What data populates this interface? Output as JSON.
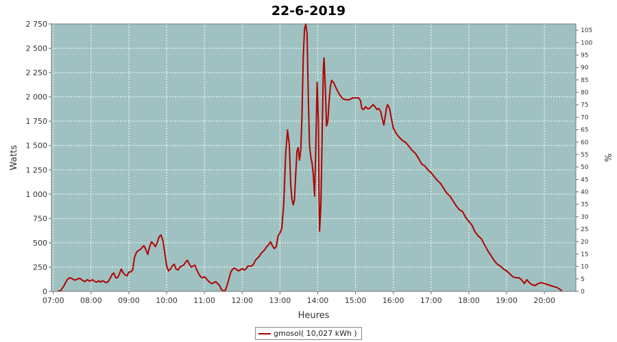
{
  "chart_data": {
    "type": "line",
    "title": "22-6-2019",
    "xlabel": "Heures",
    "ylabel": "Watts",
    "y2label": "%",
    "ylim": [
      0,
      2750
    ],
    "y2lim": [
      0,
      107.5
    ],
    "xlim": [
      "06:57",
      "20:50"
    ],
    "grid": true,
    "legend_position": "bottom-center",
    "x_ticks": [
      "07:00",
      "08:00",
      "09:00",
      "10:00",
      "11:00",
      "12:00",
      "13:00",
      "14:00",
      "15:00",
      "16:00",
      "17:00",
      "18:00",
      "19:00",
      "20:00"
    ],
    "y_ticks": [
      "0",
      "250",
      "500",
      "750",
      "1 000",
      "1 250",
      "1 500",
      "1 750",
      "2 000",
      "2 250",
      "2 500",
      "2 750"
    ],
    "y2_ticks": [
      "0",
      "5",
      "10",
      "15",
      "20",
      "25",
      "30",
      "35",
      "40",
      "45",
      "50",
      "55",
      "60",
      "65",
      "70",
      "75",
      "80",
      "85",
      "90",
      "95",
      "100",
      "105"
    ],
    "series": [
      {
        "name": "gmosol( 10,027 kWh )",
        "color": "#b00000",
        "points": [
          [
            "07:07",
            0
          ],
          [
            "07:12",
            10
          ],
          [
            "07:17",
            60
          ],
          [
            "07:22",
            120
          ],
          [
            "07:26",
            140
          ],
          [
            "07:30",
            130
          ],
          [
            "07:34",
            115
          ],
          [
            "07:38",
            125
          ],
          [
            "07:42",
            135
          ],
          [
            "07:46",
            115
          ],
          [
            "07:50",
            100
          ],
          [
            "07:54",
            120
          ],
          [
            "07:58",
            105
          ],
          [
            "08:02",
            120
          ],
          [
            "08:05",
            105
          ],
          [
            "08:09",
            95
          ],
          [
            "08:12",
            110
          ],
          [
            "08:15",
            95
          ],
          [
            "08:18",
            110
          ],
          [
            "08:21",
            100
          ],
          [
            "08:24",
            90
          ],
          [
            "08:27",
            100
          ],
          [
            "08:30",
            130
          ],
          [
            "08:33",
            170
          ],
          [
            "08:36",
            190
          ],
          [
            "08:39",
            140
          ],
          [
            "08:42",
            140
          ],
          [
            "08:45",
            180
          ],
          [
            "08:48",
            230
          ],
          [
            "08:51",
            190
          ],
          [
            "08:54",
            170
          ],
          [
            "08:57",
            160
          ],
          [
            "09:00",
            200
          ],
          [
            "09:03",
            200
          ],
          [
            "09:06",
            220
          ],
          [
            "09:09",
            350
          ],
          [
            "09:12",
            400
          ],
          [
            "09:15",
            420
          ],
          [
            "09:18",
            430
          ],
          [
            "09:21",
            450
          ],
          [
            "09:24",
            470
          ],
          [
            "09:27",
            430
          ],
          [
            "09:30",
            380
          ],
          [
            "09:33",
            460
          ],
          [
            "09:36",
            510
          ],
          [
            "09:39",
            490
          ],
          [
            "09:42",
            460
          ],
          [
            "09:45",
            500
          ],
          [
            "09:48",
            560
          ],
          [
            "09:51",
            580
          ],
          [
            "09:54",
            520
          ],
          [
            "09:57",
            400
          ],
          [
            "10:00",
            260
          ],
          [
            "10:03",
            210
          ],
          [
            "10:06",
            230
          ],
          [
            "10:09",
            260
          ],
          [
            "10:12",
            280
          ],
          [
            "10:15",
            230
          ],
          [
            "10:18",
            220
          ],
          [
            "10:21",
            250
          ],
          [
            "10:24",
            260
          ],
          [
            "10:27",
            270
          ],
          [
            "10:30",
            300
          ],
          [
            "10:33",
            320
          ],
          [
            "10:36",
            280
          ],
          [
            "10:39",
            250
          ],
          [
            "10:42",
            260
          ],
          [
            "10:45",
            270
          ],
          [
            "10:48",
            220
          ],
          [
            "10:51",
            180
          ],
          [
            "10:54",
            150
          ],
          [
            "10:57",
            140
          ],
          [
            "11:00",
            150
          ],
          [
            "11:03",
            130
          ],
          [
            "11:06",
            110
          ],
          [
            "11:09",
            90
          ],
          [
            "11:12",
            80
          ],
          [
            "11:15",
            90
          ],
          [
            "11:18",
            100
          ],
          [
            "11:21",
            80
          ],
          [
            "11:24",
            60
          ],
          [
            "11:27",
            20
          ],
          [
            "11:30",
            5
          ],
          [
            "11:33",
            10
          ],
          [
            "11:36",
            60
          ],
          [
            "11:39",
            130
          ],
          [
            "11:42",
            200
          ],
          [
            "11:45",
            230
          ],
          [
            "11:48",
            240
          ],
          [
            "11:51",
            225
          ],
          [
            "11:54",
            210
          ],
          [
            "11:57",
            220
          ],
          [
            "12:00",
            235
          ],
          [
            "12:03",
            220
          ],
          [
            "12:06",
            230
          ],
          [
            "12:09",
            260
          ],
          [
            "12:12",
            260
          ],
          [
            "12:15",
            260
          ],
          [
            "12:18",
            280
          ],
          [
            "12:21",
            320
          ],
          [
            "12:24",
            340
          ],
          [
            "12:27",
            360
          ],
          [
            "12:30",
            390
          ],
          [
            "12:33",
            410
          ],
          [
            "12:36",
            430
          ],
          [
            "12:39",
            460
          ],
          [
            "12:42",
            480
          ],
          [
            "12:45",
            510
          ],
          [
            "12:48",
            470
          ],
          [
            "12:51",
            440
          ],
          [
            "12:54",
            460
          ],
          [
            "12:57",
            570
          ],
          [
            "13:00",
            600
          ],
          [
            "13:03",
            650
          ],
          [
            "13:06",
            900
          ],
          [
            "13:09",
            1400
          ],
          [
            "13:12",
            1660
          ],
          [
            "13:15",
            1500
          ],
          [
            "13:17",
            1100
          ],
          [
            "13:19",
            950
          ],
          [
            "13:21",
            890
          ],
          [
            "13:23",
            940
          ],
          [
            "13:25",
            1200
          ],
          [
            "13:27",
            1440
          ],
          [
            "13:29",
            1480
          ],
          [
            "13:31",
            1350
          ],
          [
            "13:33",
            1450
          ],
          [
            "13:35",
            1800
          ],
          [
            "13:37",
            2400
          ],
          [
            "13:39",
            2700
          ],
          [
            "13:41",
            2750
          ],
          [
            "13:43",
            2650
          ],
          [
            "13:45",
            2000
          ],
          [
            "13:47",
            1500
          ],
          [
            "13:49",
            1380
          ],
          [
            "13:51",
            1320
          ],
          [
            "13:53",
            1200
          ],
          [
            "13:55",
            980
          ],
          [
            "13:57",
            1500
          ],
          [
            "13:59",
            2150
          ],
          [
            "14:01",
            1750
          ],
          [
            "14:02",
            1000
          ],
          [
            "14:03",
            620
          ],
          [
            "14:05",
            900
          ],
          [
            "14:07",
            1600
          ],
          [
            "14:09",
            2300
          ],
          [
            "14:10",
            2400
          ],
          [
            "14:12",
            2100
          ],
          [
            "14:14",
            1700
          ],
          [
            "14:16",
            1750
          ],
          [
            "14:18",
            1950
          ],
          [
            "14:20",
            2100
          ],
          [
            "14:22",
            2170
          ],
          [
            "14:25",
            2150
          ],
          [
            "14:30",
            2080
          ],
          [
            "14:35",
            2020
          ],
          [
            "14:40",
            1980
          ],
          [
            "14:45",
            1970
          ],
          [
            "14:50",
            1970
          ],
          [
            "14:55",
            1990
          ],
          [
            "15:00",
            1990
          ],
          [
            "15:05",
            1990
          ],
          [
            "15:08",
            1960
          ],
          [
            "15:10",
            1880
          ],
          [
            "15:13",
            1870
          ],
          [
            "15:16",
            1900
          ],
          [
            "15:19",
            1880
          ],
          [
            "15:22",
            1880
          ],
          [
            "15:25",
            1900
          ],
          [
            "15:28",
            1920
          ],
          [
            "15:31",
            1900
          ],
          [
            "15:34",
            1870
          ],
          [
            "15:37",
            1880
          ],
          [
            "15:40",
            1850
          ],
          [
            "15:43",
            1760
          ],
          [
            "15:45",
            1710
          ],
          [
            "15:47",
            1790
          ],
          [
            "15:49",
            1880
          ],
          [
            "15:51",
            1920
          ],
          [
            "15:54",
            1880
          ],
          [
            "15:57",
            1780
          ],
          [
            "16:00",
            1680
          ],
          [
            "16:05",
            1620
          ],
          [
            "16:10",
            1580
          ],
          [
            "16:15",
            1550
          ],
          [
            "16:20",
            1530
          ],
          [
            "16:25",
            1490
          ],
          [
            "16:30",
            1450
          ],
          [
            "16:35",
            1420
          ],
          [
            "16:40",
            1370
          ],
          [
            "16:45",
            1310
          ],
          [
            "16:50",
            1290
          ],
          [
            "16:55",
            1250
          ],
          [
            "17:00",
            1220
          ],
          [
            "17:05",
            1180
          ],
          [
            "17:10",
            1140
          ],
          [
            "17:15",
            1110
          ],
          [
            "17:20",
            1060
          ],
          [
            "17:25",
            1010
          ],
          [
            "17:30",
            980
          ],
          [
            "17:35",
            930
          ],
          [
            "17:40",
            880
          ],
          [
            "17:45",
            840
          ],
          [
            "17:50",
            820
          ],
          [
            "17:55",
            760
          ],
          [
            "18:00",
            720
          ],
          [
            "18:05",
            680
          ],
          [
            "18:10",
            610
          ],
          [
            "18:15",
            570
          ],
          [
            "18:20",
            540
          ],
          [
            "18:25",
            480
          ],
          [
            "18:30",
            420
          ],
          [
            "18:35",
            370
          ],
          [
            "18:40",
            320
          ],
          [
            "18:45",
            280
          ],
          [
            "18:50",
            260
          ],
          [
            "18:55",
            230
          ],
          [
            "19:00",
            210
          ],
          [
            "19:05",
            180
          ],
          [
            "19:10",
            150
          ],
          [
            "19:15",
            140
          ],
          [
            "19:20",
            140
          ],
          [
            "19:25",
            110
          ],
          [
            "19:28",
            80
          ],
          [
            "19:32",
            120
          ],
          [
            "19:36",
            90
          ],
          [
            "19:40",
            70
          ],
          [
            "19:45",
            60
          ],
          [
            "19:50",
            80
          ],
          [
            "19:55",
            90
          ],
          [
            "20:00",
            80
          ],
          [
            "20:05",
            70
          ],
          [
            "20:10",
            60
          ],
          [
            "20:15",
            50
          ],
          [
            "20:20",
            40
          ],
          [
            "20:25",
            20
          ],
          [
            "20:28",
            5
          ]
        ]
      }
    ]
  },
  "legend": {
    "label": "gmosol( 10,027 kWh )"
  }
}
